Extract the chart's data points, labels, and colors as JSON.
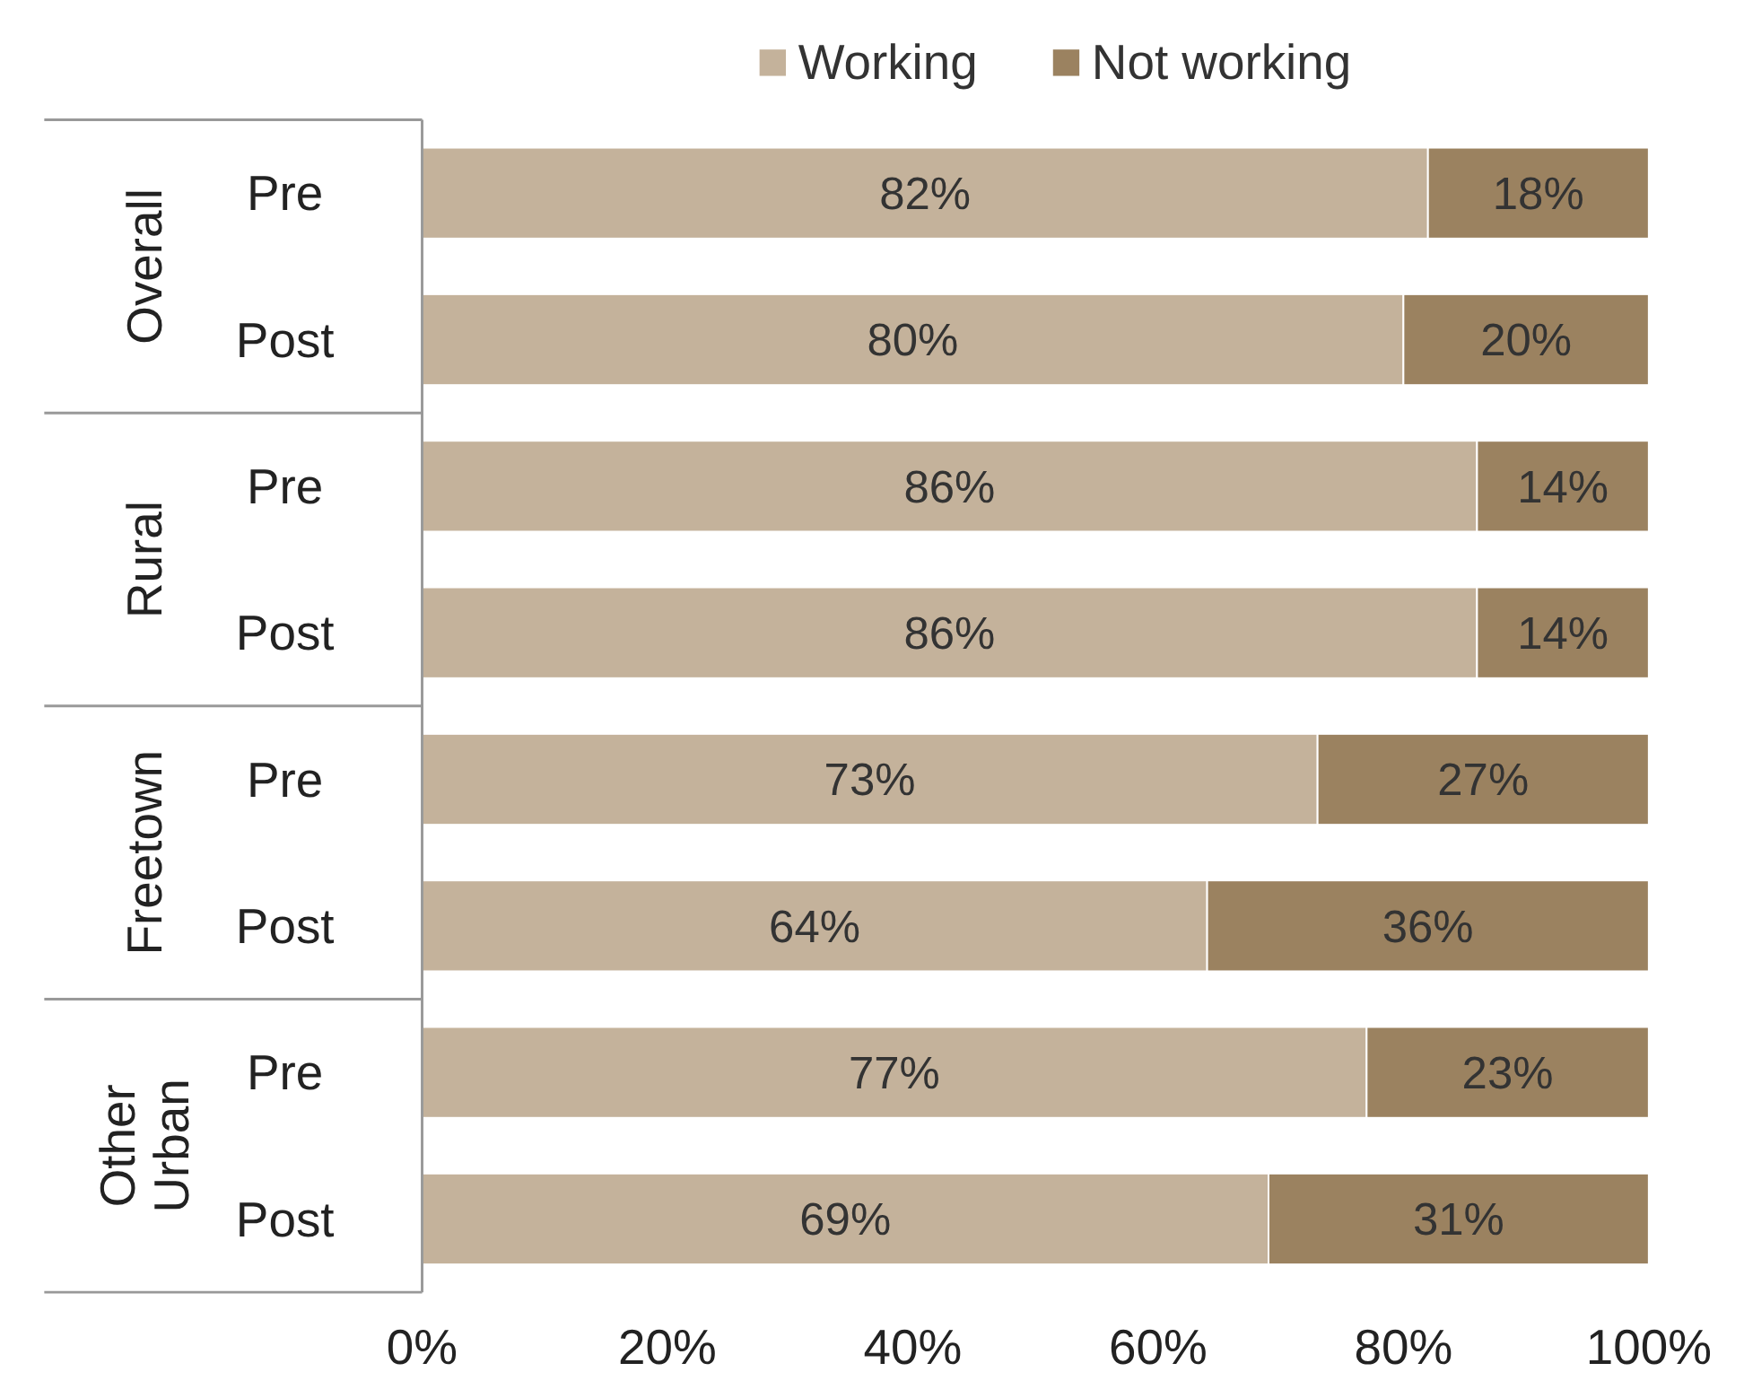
{
  "chart_data": {
    "type": "bar",
    "orientation": "horizontal",
    "stacked": true,
    "categories": [
      "Pre",
      "Post",
      "Pre",
      "Post",
      "Pre",
      "Post",
      "Pre",
      "Post"
    ],
    "annotations": [
      "Overall",
      "Rural",
      "Freetown",
      "Other Urban"
    ],
    "series": [
      {
        "name": "Working",
        "color": "#c4b29b",
        "values": [
          82,
          80,
          86,
          86,
          73,
          64,
          77,
          69
        ],
        "value_labels": [
          "82%",
          "80%",
          "86%",
          "86%",
          "73%",
          "64%",
          "77%",
          "69%"
        ]
      },
      {
        "name": "Not working",
        "color": "#9b8260",
        "values": [
          18,
          20,
          14,
          14,
          27,
          36,
          23,
          31
        ],
        "value_labels": [
          "18%",
          "20%",
          "14%",
          "14%",
          "27%",
          "36%",
          "23%",
          "31%"
        ]
      }
    ],
    "xlim": [
      0,
      100
    ],
    "xticks": [
      {
        "value": 0,
        "label": "0%"
      },
      {
        "value": 20,
        "label": "20%"
      },
      {
        "value": 40,
        "label": "40%"
      },
      {
        "value": 60,
        "label": "60%"
      },
      {
        "value": 80,
        "label": "80%"
      },
      {
        "value": 100,
        "label": "100%"
      }
    ],
    "grid": false,
    "legend": "top"
  }
}
